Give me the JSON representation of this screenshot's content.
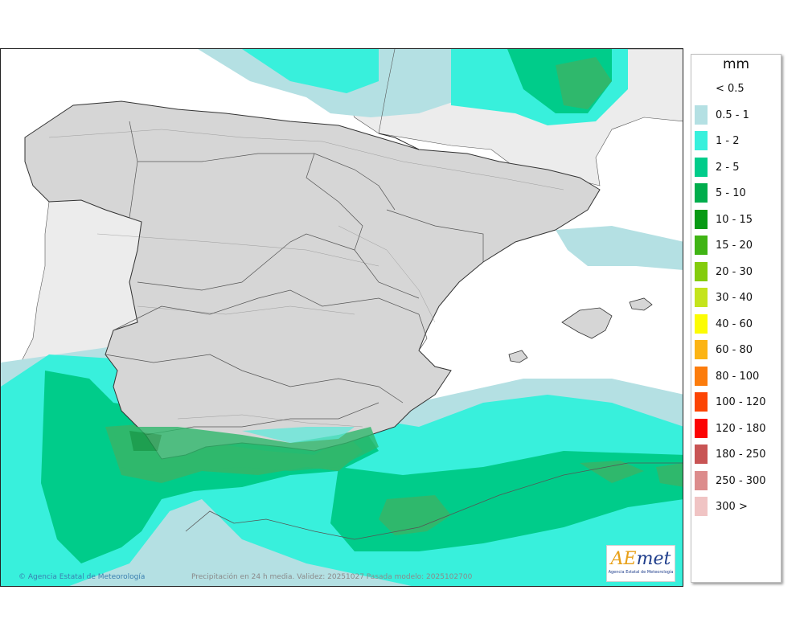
{
  "map": {
    "copyright": "© Agencia Estatal de Meteorología",
    "validity_text": "Precipitación en 24 h media. Validez: 20251027 Pasada modelo: 2025102700",
    "logo": {
      "mark_a": "AE",
      "mark_b": "met",
      "subtitle": "Agencia Estatal de Meteorología"
    }
  },
  "legend": {
    "unit": "mm",
    "classes": [
      {
        "label": "< 0.5",
        "color": "#ffffff"
      },
      {
        "label": "0.5 - 1",
        "color": "#b4e0e3"
      },
      {
        "label": "1 - 2",
        "color": "#38f0dc"
      },
      {
        "label": "2 - 5",
        "color": "#00cc8a"
      },
      {
        "label": "5 - 10",
        "color": "#00ad4c"
      },
      {
        "label": "10 - 15",
        "color": "#089a14"
      },
      {
        "label": "15 - 20",
        "color": "#40b414"
      },
      {
        "label": "20 - 30",
        "color": "#84cc0c"
      },
      {
        "label": "30 - 40",
        "color": "#c4e41c"
      },
      {
        "label": "40 - 60",
        "color": "#fcfc04"
      },
      {
        "label": "60 - 80",
        "color": "#fcb414"
      },
      {
        "label": "80 - 100",
        "color": "#fc7c0c"
      },
      {
        "label": "100 - 120",
        "color": "#fc4404"
      },
      {
        "label": "120 - 180",
        "color": "#fc0404"
      },
      {
        "label": "180 - 250",
        "color": "#c85454"
      },
      {
        "label": "250 - 300",
        "color": "#dc8c8c"
      },
      {
        "label": "300 >",
        "color": "#f0c4c4"
      }
    ]
  }
}
